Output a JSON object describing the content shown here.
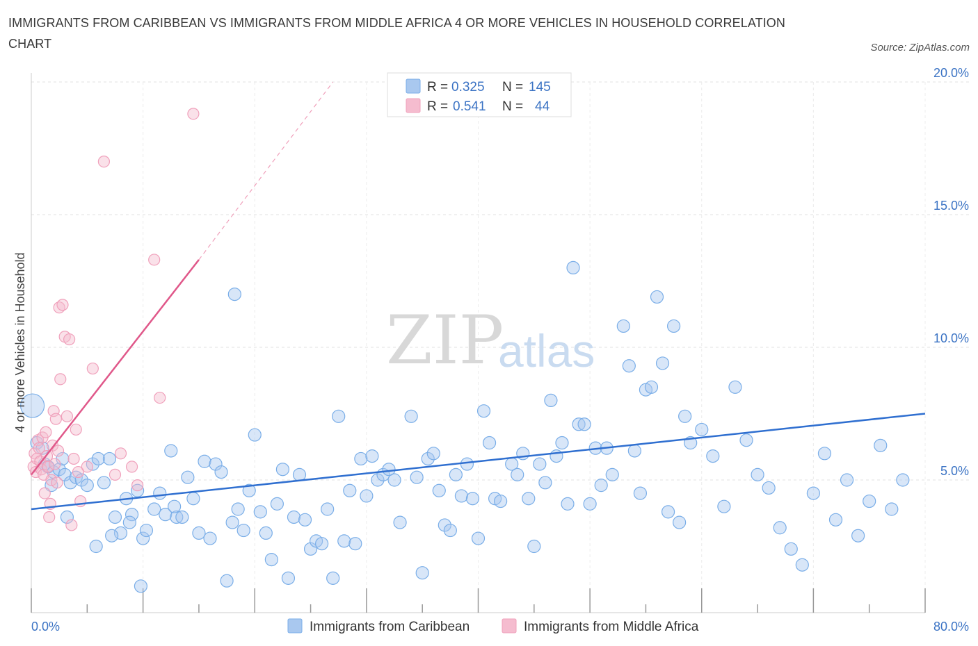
{
  "header": {
    "title": "IMMIGRANTS FROM CARIBBEAN VS IMMIGRANTS FROM MIDDLE AFRICA 4 OR MORE VEHICLES IN HOUSEHOLD CORRELATION CHART",
    "source": "Source: ZipAtlas.com"
  },
  "watermark": {
    "zip": "ZIP",
    "atlas": "atlas"
  },
  "legend": {
    "r_label": "R =",
    "n_label": "N =",
    "rows": [
      {
        "r": "0.325",
        "n": "145",
        "color": "#7aaee8"
      },
      {
        "r": "0.541",
        "n": "44",
        "color": "#f0a0bb"
      }
    ]
  },
  "colors": {
    "blue": "#3b73c4",
    "blue_line": "#2f6fd0",
    "pink": "#e0588a",
    "blue_fill": "#a9c8ef",
    "pink_fill": "#f5bccf"
  },
  "chart_data": {
    "type": "scatter",
    "xlim": [
      0,
      80
    ],
    "ylim": [
      0,
      20
    ],
    "ylabel": "4 or more Vehicles in Household",
    "x_tick_labels": [
      "0.0%",
      "80.0%"
    ],
    "y_ticks": [
      5,
      10,
      15,
      20
    ],
    "y_tick_labels": [
      "5.0%",
      "10.0%",
      "15.0%",
      "20.0%"
    ],
    "grid": true,
    "series": [
      {
        "name": "Immigrants from Caribbean",
        "color": "#7aaee8",
        "trend": {
          "x": [
            0,
            80
          ],
          "y": [
            3.9,
            7.5
          ]
        },
        "points": [
          [
            0.1,
            7.8
          ],
          [
            0.5,
            6.4
          ],
          [
            1,
            6.2
          ],
          [
            1.2,
            5.6
          ],
          [
            1.5,
            5.5
          ],
          [
            2,
            5.3
          ],
          [
            2.5,
            5.4
          ],
          [
            3,
            5.2
          ],
          [
            3.5,
            4.9
          ],
          [
            4,
            5.1
          ],
          [
            4.5,
            5.0
          ],
          [
            5,
            4.8
          ],
          [
            5.5,
            5.6
          ],
          [
            6,
            5.8
          ],
          [
            6.5,
            4.9
          ],
          [
            7,
            5.8
          ],
          [
            7.5,
            3.6
          ],
          [
            8,
            3.0
          ],
          [
            8.5,
            4.3
          ],
          [
            9,
            3.7
          ],
          [
            9.5,
            4.6
          ],
          [
            10,
            2.8
          ],
          [
            10.3,
            3.1
          ],
          [
            11,
            3.9
          ],
          [
            11.5,
            4.5
          ],
          [
            12,
            3.7
          ],
          [
            12.5,
            6.1
          ],
          [
            13,
            3.6
          ],
          [
            13.5,
            3.6
          ],
          [
            14,
            5.1
          ],
          [
            14.5,
            4.3
          ],
          [
            15,
            3.0
          ],
          [
            15.5,
            5.7
          ],
          [
            16,
            2.8
          ],
          [
            16.5,
            5.6
          ],
          [
            17,
            5.3
          ],
          [
            17.5,
            1.2
          ],
          [
            18,
            3.4
          ],
          [
            18.5,
            3.9
          ],
          [
            19,
            3.1
          ],
          [
            19.5,
            4.6
          ],
          [
            20,
            6.7
          ],
          [
            20.5,
            3.8
          ],
          [
            21,
            3.0
          ],
          [
            21.5,
            2.0
          ],
          [
            22,
            4.1
          ],
          [
            22.5,
            5.4
          ],
          [
            23,
            1.3
          ],
          [
            23.5,
            3.6
          ],
          [
            24,
            5.2
          ],
          [
            24.5,
            3.5
          ],
          [
            25,
            2.4
          ],
          [
            25.5,
            2.7
          ],
          [
            26,
            2.6
          ],
          [
            26.5,
            3.9
          ],
          [
            27,
            1.3
          ],
          [
            27.5,
            7.4
          ],
          [
            28,
            2.7
          ],
          [
            28.5,
            4.6
          ],
          [
            29,
            2.6
          ],
          [
            29.5,
            5.8
          ],
          [
            30,
            4.4
          ],
          [
            30.5,
            5.9
          ],
          [
            31,
            5.0
          ],
          [
            31.5,
            5.2
          ],
          [
            32,
            5.4
          ],
          [
            32.5,
            5.0
          ],
          [
            33,
            3.4
          ],
          [
            34,
            7.4
          ],
          [
            34.5,
            5.1
          ],
          [
            35,
            1.5
          ],
          [
            35.5,
            5.8
          ],
          [
            36,
            6.0
          ],
          [
            36.5,
            4.6
          ],
          [
            37,
            3.3
          ],
          [
            37.5,
            3.1
          ],
          [
            38,
            5.2
          ],
          [
            38.5,
            4.4
          ],
          [
            39,
            5.6
          ],
          [
            39.5,
            4.3
          ],
          [
            40,
            2.8
          ],
          [
            40.5,
            7.6
          ],
          [
            41,
            6.4
          ],
          [
            41.5,
            4.3
          ],
          [
            42,
            4.2
          ],
          [
            43,
            5.6
          ],
          [
            43.5,
            5.2
          ],
          [
            44,
            6.0
          ],
          [
            44.5,
            4.3
          ],
          [
            45,
            2.5
          ],
          [
            45.5,
            5.6
          ],
          [
            46,
            4.9
          ],
          [
            46.5,
            8.0
          ],
          [
            47,
            5.9
          ],
          [
            47.5,
            6.4
          ],
          [
            48,
            4.1
          ],
          [
            48.5,
            13.0
          ],
          [
            49,
            7.1
          ],
          [
            49.5,
            7.1
          ],
          [
            50,
            4.1
          ],
          [
            50.5,
            6.2
          ],
          [
            51,
            4.8
          ],
          [
            51.5,
            6.2
          ],
          [
            52,
            5.2
          ],
          [
            53,
            10.8
          ],
          [
            53.5,
            9.3
          ],
          [
            54,
            6.1
          ],
          [
            54.5,
            4.5
          ],
          [
            55,
            8.4
          ],
          [
            55.5,
            8.5
          ],
          [
            56,
            11.9
          ],
          [
            56.5,
            9.4
          ],
          [
            57,
            3.8
          ],
          [
            57.5,
            10.8
          ],
          [
            58,
            3.4
          ],
          [
            58.5,
            7.4
          ],
          [
            59,
            6.4
          ],
          [
            60,
            6.9
          ],
          [
            61,
            5.9
          ],
          [
            62,
            4.0
          ],
          [
            63,
            8.5
          ],
          [
            64,
            6.5
          ],
          [
            65,
            5.2
          ],
          [
            66,
            4.7
          ],
          [
            67,
            3.2
          ],
          [
            68,
            2.4
          ],
          [
            69,
            1.8
          ],
          [
            70,
            4.5
          ],
          [
            71,
            6.0
          ],
          [
            72,
            3.5
          ],
          [
            73,
            5.0
          ],
          [
            74,
            2.9
          ],
          [
            75,
            4.2
          ],
          [
            76,
            6.3
          ],
          [
            77,
            3.9
          ],
          [
            78,
            5.0
          ],
          [
            1.8,
            4.8
          ],
          [
            2.8,
            5.8
          ],
          [
            3.2,
            3.6
          ],
          [
            5.8,
            2.5
          ],
          [
            7.2,
            2.9
          ],
          [
            8.8,
            3.4
          ],
          [
            9.8,
            1.0
          ],
          [
            12.8,
            4.0
          ],
          [
            18.2,
            12.0
          ]
        ]
      },
      {
        "name": "Immigrants from Middle Africa",
        "color": "#f0a0bb",
        "trend": {
          "x": [
            0,
            15
          ],
          "y": [
            5.2,
            13.3
          ]
        },
        "trend_dashed": {
          "x": [
            15,
            27
          ],
          "y": [
            13.3,
            20.0
          ]
        },
        "points": [
          [
            0.2,
            5.5
          ],
          [
            0.3,
            6.0
          ],
          [
            0.4,
            5.3
          ],
          [
            0.5,
            5.8
          ],
          [
            0.6,
            6.5
          ],
          [
            0.7,
            6.2
          ],
          [
            0.8,
            5.7
          ],
          [
            0.9,
            5.4
          ],
          [
            1.0,
            6.6
          ],
          [
            1.1,
            5.2
          ],
          [
            1.2,
            4.5
          ],
          [
            1.3,
            6.8
          ],
          [
            1.4,
            5.9
          ],
          [
            1.5,
            5.5
          ],
          [
            1.6,
            3.6
          ],
          [
            1.7,
            4.1
          ],
          [
            1.8,
            5.0
          ],
          [
            1.9,
            6.3
          ],
          [
            2.0,
            7.6
          ],
          [
            2.1,
            5.6
          ],
          [
            2.2,
            7.3
          ],
          [
            2.3,
            4.9
          ],
          [
            2.4,
            6.1
          ],
          [
            2.5,
            11.5
          ],
          [
            2.6,
            8.8
          ],
          [
            2.8,
            11.6
          ],
          [
            3.0,
            10.4
          ],
          [
            3.2,
            7.4
          ],
          [
            3.4,
            10.3
          ],
          [
            3.6,
            3.3
          ],
          [
            3.8,
            5.8
          ],
          [
            4.0,
            6.9
          ],
          [
            4.2,
            5.3
          ],
          [
            4.4,
            4.2
          ],
          [
            5.0,
            5.5
          ],
          [
            5.5,
            9.2
          ],
          [
            6.5,
            17.0
          ],
          [
            8.0,
            6.0
          ],
          [
            9.0,
            5.5
          ],
          [
            9.5,
            4.8
          ],
          [
            11.0,
            13.3
          ],
          [
            11.5,
            8.1
          ],
          [
            14.5,
            18.8
          ],
          [
            7.5,
            5.2
          ]
        ]
      }
    ]
  },
  "bottom_legend": [
    {
      "label": "Immigrants from Caribbean",
      "color": "#a9c8ef"
    },
    {
      "label": "Immigrants from Middle Africa",
      "color": "#f5bccf"
    }
  ]
}
